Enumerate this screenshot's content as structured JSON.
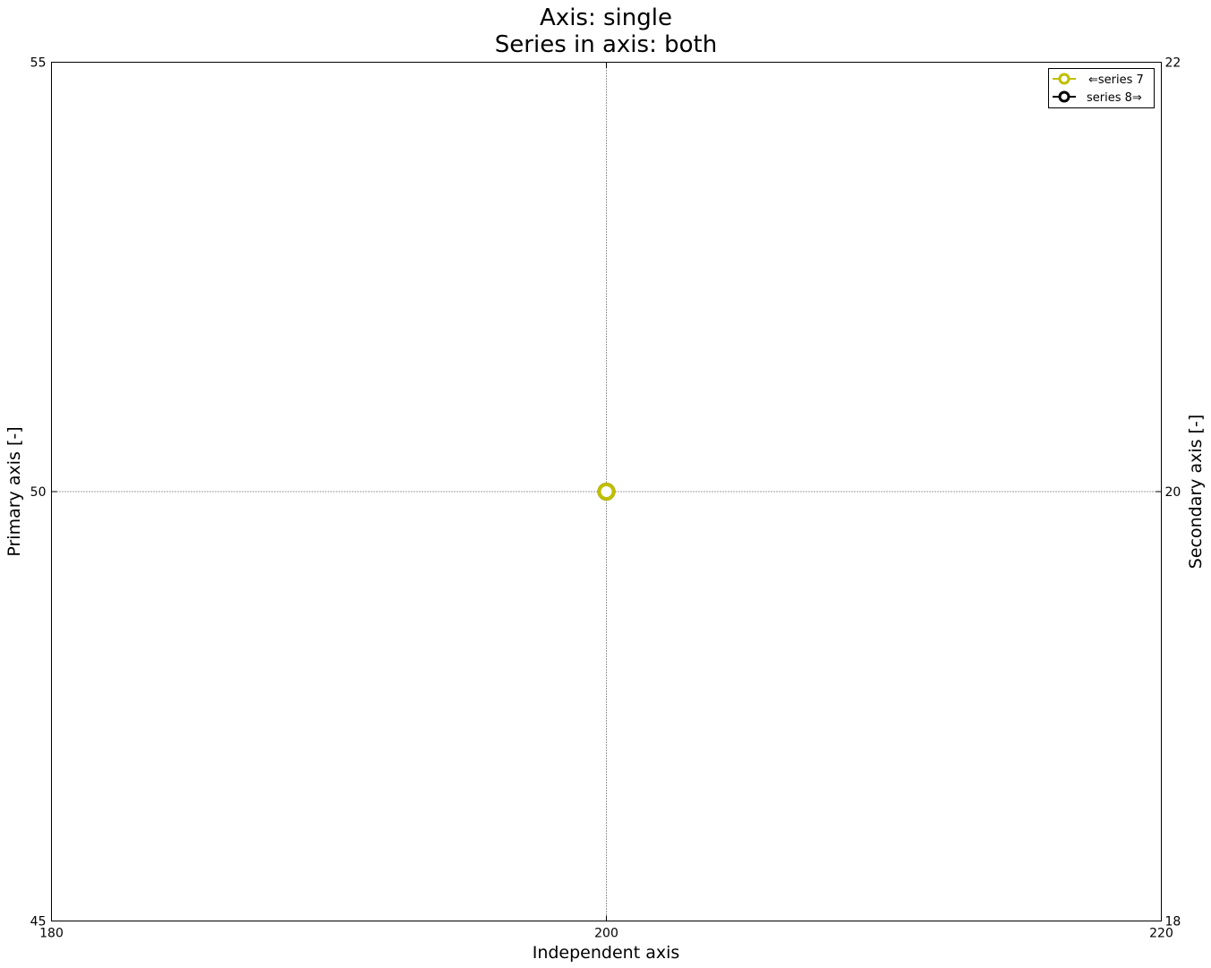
{
  "chart_data": {
    "type": "scatter",
    "title": "Axis: single",
    "subtitle": "Series in axis: both",
    "xlabel": "Independent axis",
    "ylabel": "Primary axis [-]",
    "y2label": "Secondary axis [-]",
    "xlim": [
      180,
      220
    ],
    "ylim": [
      45,
      55
    ],
    "y2lim": [
      18,
      22
    ],
    "xticks": [
      "180",
      "200",
      "220"
    ],
    "yticks": [
      "45",
      "50",
      "55"
    ],
    "y2ticks": [
      "18",
      "20",
      "22"
    ],
    "grid": true,
    "legend_position": "top-right",
    "series": [
      {
        "name": "⇐series 7",
        "axis": "primary",
        "color": "#bfbf00",
        "points": [
          {
            "x": 200,
            "y": 50
          }
        ]
      },
      {
        "name": "series 8⇒",
        "axis": "secondary",
        "color": "#000000",
        "points": [
          {
            "x": 200,
            "y": 20
          }
        ]
      }
    ]
  }
}
